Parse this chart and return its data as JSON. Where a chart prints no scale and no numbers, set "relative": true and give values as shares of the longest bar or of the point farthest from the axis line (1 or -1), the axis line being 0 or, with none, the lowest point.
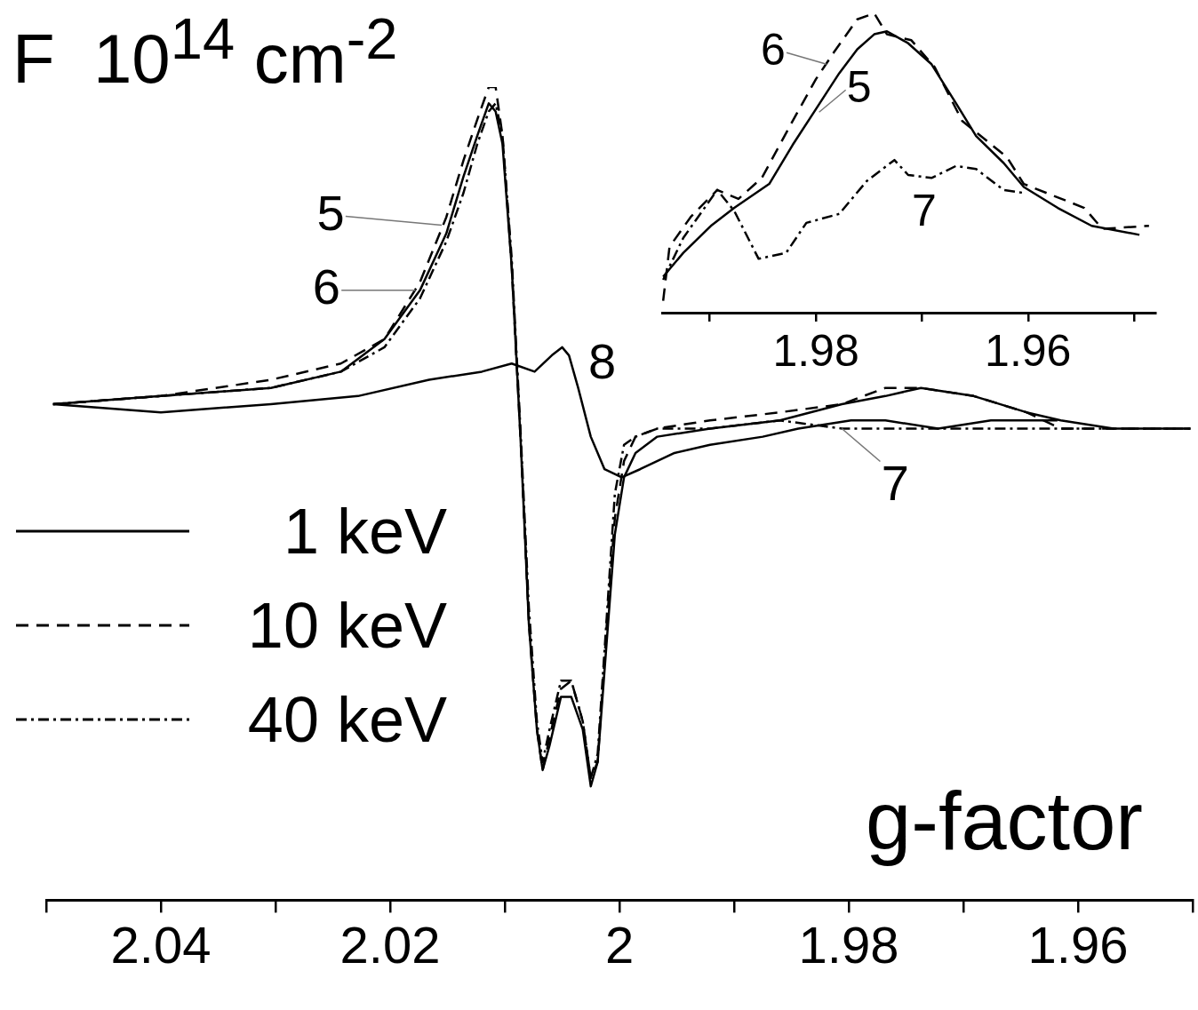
{
  "chart_data": [
    {
      "type": "line",
      "title": "F  10$^{14}$ cm$^{-2}$",
      "xlabel": "g-factor",
      "relative": true,
      "legend": "left",
      "xlim": [
        2.05,
        1.95
      ],
      "xticks": [
        {
          "value": 2.05,
          "label": null
        },
        2.04,
        {
          "value": 2.03,
          "label": null
        },
        2.02,
        {
          "value": 2.01,
          "label": null
        },
        2,
        {
          "value": 1.99,
          "label": null
        },
        1.98,
        {
          "value": 1.97,
          "label": null
        },
        1.96,
        {
          "value": 1.95,
          "label": null
        }
      ],
      "annotations": [
        {
          "text": "5",
          "x": 2.0155,
          "y": 0.83
        },
        {
          "text": "6",
          "x": 2.0178,
          "y": 0.75
        },
        {
          "text": "8",
          "x": 2.005,
          "y": 0.68
        },
        {
          "text": "7",
          "x": 1.9806,
          "y": 0.58
        }
      ],
      "series": [
        {
          "name": "1 keV",
          "color": "#000000",
          "line_style": "solid",
          "x": [
            2.0494,
            2.04,
            2.0304,
            2.0243,
            2.0205,
            2.0174,
            2.0151,
            2.0136,
            2.0124,
            2.0114,
            2.0108,
            2.0102,
            2.0094,
            2.0086,
            2.0079,
            2.0072,
            2.0067,
            2.0061,
            2.0051,
            2.0042,
            2.0032,
            2.0025,
            2.0019,
            2.0011,
            2.0004,
            1.9996,
            1.9986,
            1.9967,
            1.9921,
            1.986,
            1.9806,
            1.9768,
            1.9737,
            1.9691,
            1.9645,
            1.9615,
            1.9569,
            1.9502
          ],
          "values": [
            0.61,
            0.62,
            0.63,
            0.65,
            0.69,
            0.75,
            0.82,
            0.89,
            0.94,
            0.98,
            0.97,
            0.93,
            0.78,
            0.56,
            0.34,
            0.21,
            0.16,
            0.19,
            0.25,
            0.25,
            0.21,
            0.14,
            0.17,
            0.32,
            0.45,
            0.52,
            0.55,
            0.57,
            0.58,
            0.59,
            0.61,
            0.62,
            0.63,
            0.62,
            0.6,
            0.59,
            0.58,
            0.58
          ]
        },
        {
          "name": "10 keV",
          "color": "#000000",
          "line_style": "dashed",
          "x": [
            2.0494,
            2.04,
            2.0304,
            2.0243,
            2.0205,
            2.0174,
            2.0151,
            2.0136,
            2.0124,
            2.0114,
            2.0108,
            2.0102,
            2.0094,
            2.0086,
            2.0079,
            2.0072,
            2.0067,
            2.0061,
            2.0051,
            2.0042,
            2.0032,
            2.0025,
            2.0019,
            2.0011,
            2.0004,
            1.9996,
            1.9986,
            1.9967,
            1.9921,
            1.986,
            1.9806,
            1.9768,
            1.9737,
            1.9691,
            1.9645,
            1.9615,
            1.9569,
            1.9502
          ],
          "values": [
            0.61,
            0.62,
            0.64,
            0.66,
            0.69,
            0.76,
            0.84,
            0.91,
            0.96,
            1.0,
            1.0,
            0.94,
            0.78,
            0.56,
            0.34,
            0.21,
            0.16,
            0.2,
            0.26,
            0.27,
            0.22,
            0.15,
            0.17,
            0.34,
            0.47,
            0.54,
            0.57,
            0.58,
            0.59,
            0.6,
            0.61,
            0.63,
            0.63,
            0.62,
            0.6,
            0.58,
            0.58,
            0.58
          ]
        },
        {
          "name": "40 keV",
          "color": "#000000",
          "line_style": "dashdot",
          "x": [
            2.0494,
            2.04,
            2.0304,
            2.0243,
            2.0205,
            2.0174,
            2.0151,
            2.0136,
            2.0124,
            2.0114,
            2.0108,
            2.0102,
            2.0094,
            2.0086,
            2.0079,
            2.0072,
            2.0067,
            2.0061,
            2.0051,
            2.0042,
            2.0032,
            2.0025,
            2.0019,
            2.0011,
            2.0004,
            1.9996,
            1.9986,
            1.9967,
            1.9921,
            1.986,
            1.9806,
            1.9768,
            1.9737,
            1.9691,
            1.9645,
            1.9615,
            1.9569,
            1.9502
          ],
          "values": [
            0.61,
            0.62,
            0.63,
            0.65,
            0.68,
            0.74,
            0.81,
            0.87,
            0.93,
            0.97,
            0.98,
            0.94,
            0.79,
            0.57,
            0.36,
            0.22,
            0.17,
            0.21,
            0.27,
            0.27,
            0.22,
            0.15,
            0.18,
            0.35,
            0.5,
            0.56,
            0.57,
            0.58,
            0.58,
            0.59,
            0.58,
            0.58,
            0.58,
            0.58,
            0.58,
            0.58,
            0.58,
            0.58
          ]
        },
        {
          "color": "#000000",
          "line_style": "solid",
          "x": [
            2.0494,
            2.04,
            2.0304,
            2.0228,
            2.0166,
            2.012,
            2.0094,
            2.0074,
            2.0059,
            2.005,
            2.0044,
            2.0036,
            2.0025,
            2.0013,
            1.9998,
            1.9982,
            1.9952,
            1.9921,
            1.9875,
            1.9844,
            1.9798,
            1.9768,
            1.9722,
            1.9676,
            1.9618
          ],
          "values": [
            0.61,
            0.6,
            0.61,
            0.62,
            0.64,
            0.65,
            0.66,
            0.65,
            0.67,
            0.68,
            0.67,
            0.63,
            0.57,
            0.53,
            0.52,
            0.53,
            0.55,
            0.56,
            0.57,
            0.58,
            0.59,
            0.59,
            0.58,
            0.59,
            0.59
          ]
        }
      ]
    },
    {
      "type": "line",
      "relative": true,
      "xlim": [
        1.9945,
        1.948
      ],
      "xticks": [
        {
          "value": 1.99,
          "label": null
        },
        1.98,
        {
          "value": 1.97,
          "label": null
        },
        1.96,
        {
          "value": 1.95,
          "label": null
        }
      ],
      "annotations": [
        {
          "text": "6",
          "x": 1.979,
          "y": 0.83
        },
        {
          "text": "5",
          "x": 1.9797,
          "y": 0.67
        },
        "7"
      ],
      "series": [
        {
          "color": "#000000",
          "line_style": "solid",
          "x": [
            1.9944,
            1.9925,
            1.9899,
            1.9877,
            1.9844,
            1.9822,
            1.98,
            1.9778,
            1.9761,
            1.9745,
            1.9733,
            1.9713,
            1.9691,
            1.9668,
            1.9649,
            1.9623,
            1.9604,
            1.9572,
            1.954,
            1.9495
          ],
          "values": [
            0.12,
            0.2,
            0.29,
            0.35,
            0.43,
            0.56,
            0.68,
            0.8,
            0.88,
            0.93,
            0.94,
            0.9,
            0.83,
            0.7,
            0.59,
            0.5,
            0.42,
            0.35,
            0.29,
            0.26
          ]
        },
        {
          "color": "#000000",
          "line_style": "dashed",
          "x": [
            1.9944,
            1.9938,
            1.9918,
            1.9893,
            1.9873,
            1.9851,
            1.9822,
            1.98,
            1.9783,
            1.9761,
            1.9745,
            1.9733,
            1.971,
            1.9688,
            1.9662,
            1.962,
            1.9604,
            1.9547,
            1.953,
            1.9486
          ],
          "values": [
            0.04,
            0.22,
            0.32,
            0.41,
            0.38,
            0.45,
            0.64,
            0.78,
            0.87,
            0.98,
            1.0,
            0.93,
            0.91,
            0.82,
            0.64,
            0.52,
            0.43,
            0.35,
            0.28,
            0.29
          ]
        },
        {
          "color": "#000000",
          "line_style": "dashdot",
          "x": [
            1.9944,
            1.9925,
            1.9893,
            1.9877,
            1.9854,
            1.9828,
            1.9809,
            1.9778,
            1.9752,
            1.9726,
            1.9713,
            1.9691,
            1.9668,
            1.9649,
            1.9623,
            1.9604
          ],
          "values": [
            0.11,
            0.25,
            0.41,
            0.34,
            0.18,
            0.2,
            0.3,
            0.33,
            0.44,
            0.51,
            0.46,
            0.45,
            0.49,
            0.48,
            0.41,
            0.4
          ]
        }
      ]
    }
  ]
}
